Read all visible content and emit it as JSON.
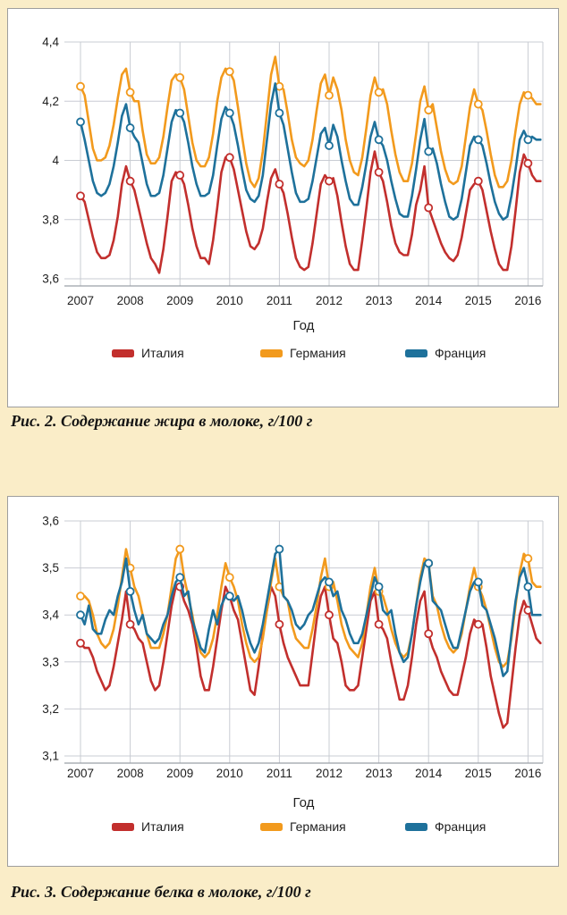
{
  "page": {
    "background": "#faedc8",
    "panel_background": "#ffffff",
    "panel_border": "#9e9e9e",
    "grid_color": "#c9ccd3",
    "axis_color": "#9aa0a6",
    "text_color": "#1f1f1f"
  },
  "figures": [
    {
      "caption": "Рис. 2. Содержание жира в молоке, г/100 г"
    },
    {
      "caption": "Рис. 3. Содержание белка в молоке, г/100 г"
    }
  ],
  "chart_data": [
    {
      "type": "line",
      "title": "Содержание жира в молоке, г/100 г",
      "xlabel": "Год",
      "ylabel": "",
      "x_start_year": 2007,
      "points_per_year": 12,
      "n_points": 112,
      "x_tick_labels": [
        "2007",
        "2008",
        "2009",
        "2010",
        "2011",
        "2012",
        "2013",
        "2014",
        "2015",
        "2016"
      ],
      "ylim": [
        3.6,
        4.4
      ],
      "y_ticks": [
        4.4,
        4.2,
        4.0,
        3.8,
        3.6
      ],
      "y_tick_labels": [
        "4,4",
        "4,2",
        "4",
        "3,8",
        "3,6"
      ],
      "marker_every": 12,
      "grid": true,
      "legend_position": "bottom",
      "series": [
        {
          "id": "italy",
          "name": "Италия",
          "color": "#c22f2d",
          "values": [
            3.88,
            3.86,
            3.8,
            3.74,
            3.69,
            3.67,
            3.67,
            3.68,
            3.73,
            3.81,
            3.92,
            3.98,
            3.93,
            3.9,
            3.84,
            3.78,
            3.72,
            3.67,
            3.65,
            3.62,
            3.7,
            3.81,
            3.93,
            3.96,
            3.95,
            3.92,
            3.85,
            3.77,
            3.71,
            3.67,
            3.67,
            3.65,
            3.73,
            3.84,
            3.96,
            4.01,
            4.01,
            3.97,
            3.9,
            3.83,
            3.76,
            3.71,
            3.7,
            3.72,
            3.77,
            3.86,
            3.94,
            3.97,
            3.92,
            3.89,
            3.82,
            3.74,
            3.67,
            3.64,
            3.63,
            3.64,
            3.72,
            3.82,
            3.92,
            3.95,
            3.93,
            3.94,
            3.88,
            3.79,
            3.71,
            3.65,
            3.63,
            3.63,
            3.73,
            3.84,
            3.96,
            4.03,
            3.96,
            3.93,
            3.86,
            3.78,
            3.72,
            3.69,
            3.68,
            3.68,
            3.75,
            3.85,
            3.9,
            3.98,
            3.84,
            3.8,
            3.76,
            3.72,
            3.69,
            3.67,
            3.66,
            3.68,
            3.74,
            3.82,
            3.9,
            3.92,
            3.93,
            3.9,
            3.83,
            3.76,
            3.7,
            3.65,
            3.63,
            3.63,
            3.71,
            3.83,
            3.96,
            4.02,
            3.99,
            3.95,
            3.93,
            3.93
          ]
        },
        {
          "id": "germany",
          "name": "Германия",
          "color": "#f29a1d",
          "values": [
            4.25,
            4.22,
            4.13,
            4.04,
            4.0,
            4.0,
            4.01,
            4.05,
            4.12,
            4.21,
            4.29,
            4.31,
            4.23,
            4.2,
            4.2,
            4.1,
            4.02,
            3.99,
            3.99,
            4.01,
            4.08,
            4.18,
            4.27,
            4.29,
            4.28,
            4.24,
            4.15,
            4.06,
            4.0,
            3.98,
            3.98,
            4.01,
            4.09,
            4.2,
            4.28,
            4.31,
            4.3,
            4.27,
            4.18,
            4.08,
            3.99,
            3.93,
            3.91,
            3.94,
            4.03,
            4.16,
            4.29,
            4.35,
            4.25,
            4.24,
            4.16,
            4.07,
            4.01,
            3.99,
            3.98,
            4.0,
            4.07,
            4.17,
            4.26,
            4.29,
            4.22,
            4.28,
            4.24,
            4.17,
            4.07,
            4.0,
            3.96,
            3.95,
            4.01,
            4.11,
            4.22,
            4.28,
            4.23,
            4.24,
            4.19,
            4.1,
            4.02,
            3.96,
            3.93,
            3.93,
            3.99,
            4.09,
            4.2,
            4.25,
            4.17,
            4.19,
            4.11,
            4.03,
            3.97,
            3.93,
            3.92,
            3.93,
            3.98,
            4.08,
            4.18,
            4.24,
            4.19,
            4.17,
            4.1,
            4.02,
            3.95,
            3.91,
            3.91,
            3.93,
            4.0,
            4.1,
            4.19,
            4.23,
            4.22,
            4.21,
            4.19,
            4.19
          ]
        },
        {
          "id": "france",
          "name": "Франция",
          "color": "#1e719b",
          "values": [
            4.13,
            4.07,
            4.0,
            3.93,
            3.89,
            3.88,
            3.89,
            3.92,
            3.98,
            4.06,
            4.15,
            4.19,
            4.11,
            4.08,
            4.06,
            3.99,
            3.92,
            3.88,
            3.88,
            3.89,
            3.95,
            4.04,
            4.13,
            4.17,
            4.16,
            4.13,
            4.06,
            3.98,
            3.92,
            3.88,
            3.88,
            3.89,
            3.95,
            4.05,
            4.14,
            4.18,
            4.16,
            4.12,
            4.05,
            3.97,
            3.9,
            3.87,
            3.86,
            3.88,
            3.95,
            4.07,
            4.19,
            4.26,
            4.16,
            4.12,
            4.04,
            3.96,
            3.89,
            3.86,
            3.86,
            3.87,
            3.93,
            4.01,
            4.09,
            4.11,
            4.05,
            4.12,
            4.08,
            4.0,
            3.93,
            3.87,
            3.85,
            3.85,
            3.91,
            3.99,
            4.08,
            4.13,
            4.07,
            4.05,
            4.0,
            3.93,
            3.87,
            3.82,
            3.81,
            3.81,
            3.88,
            3.97,
            4.07,
            4.14,
            4.03,
            4.04,
            3.99,
            3.92,
            3.86,
            3.81,
            3.8,
            3.81,
            3.87,
            3.96,
            4.05,
            4.08,
            4.07,
            4.05,
            3.99,
            3.92,
            3.86,
            3.82,
            3.8,
            3.81,
            3.88,
            3.97,
            4.07,
            4.1,
            4.07,
            4.08,
            4.07,
            4.07
          ]
        }
      ]
    },
    {
      "type": "line",
      "title": "Содержание белка в молоке, г/100 г",
      "xlabel": "Год",
      "ylabel": "",
      "x_start_year": 2007,
      "points_per_year": 12,
      "n_points": 112,
      "x_tick_labels": [
        "2007",
        "2008",
        "2009",
        "2010",
        "2011",
        "2012",
        "2013",
        "2014",
        "2015",
        "2016"
      ],
      "ylim": [
        3.1,
        3.6
      ],
      "y_ticks": [
        3.6,
        3.5,
        3.4,
        3.3,
        3.2,
        3.1
      ],
      "y_tick_labels": [
        "3,6",
        "3,5",
        "3,4",
        "3,3",
        "3,2",
        "3,1"
      ],
      "marker_every": 12,
      "grid": true,
      "legend_position": "bottom",
      "series": [
        {
          "id": "italy",
          "name": "Италия",
          "color": "#c22f2d",
          "values": [
            3.34,
            3.33,
            3.33,
            3.31,
            3.28,
            3.26,
            3.24,
            3.25,
            3.29,
            3.34,
            3.39,
            3.45,
            3.38,
            3.37,
            3.35,
            3.34,
            3.3,
            3.26,
            3.24,
            3.25,
            3.3,
            3.36,
            3.42,
            3.46,
            3.46,
            3.43,
            3.41,
            3.38,
            3.33,
            3.27,
            3.24,
            3.24,
            3.29,
            3.35,
            3.41,
            3.46,
            3.44,
            3.41,
            3.39,
            3.34,
            3.29,
            3.24,
            3.23,
            3.29,
            3.36,
            3.41,
            3.46,
            3.44,
            3.38,
            3.34,
            3.31,
            3.29,
            3.27,
            3.25,
            3.25,
            3.25,
            3.32,
            3.39,
            3.44,
            3.46,
            3.4,
            3.35,
            3.34,
            3.3,
            3.25,
            3.24,
            3.24,
            3.25,
            3.31,
            3.37,
            3.43,
            3.45,
            3.38,
            3.37,
            3.35,
            3.3,
            3.26,
            3.22,
            3.22,
            3.25,
            3.31,
            3.38,
            3.43,
            3.45,
            3.36,
            3.33,
            3.31,
            3.28,
            3.26,
            3.24,
            3.23,
            3.23,
            3.27,
            3.31,
            3.36,
            3.39,
            3.38,
            3.38,
            3.33,
            3.27,
            3.23,
            3.19,
            3.16,
            3.17,
            3.25,
            3.33,
            3.4,
            3.43,
            3.41,
            3.38,
            3.35,
            3.34
          ]
        },
        {
          "id": "germany",
          "name": "Германия",
          "color": "#f29a1d",
          "values": [
            3.44,
            3.44,
            3.43,
            3.4,
            3.36,
            3.34,
            3.33,
            3.34,
            3.37,
            3.42,
            3.48,
            3.54,
            3.5,
            3.46,
            3.44,
            3.4,
            3.36,
            3.33,
            3.33,
            3.33,
            3.36,
            3.4,
            3.46,
            3.52,
            3.54,
            3.48,
            3.44,
            3.4,
            3.35,
            3.32,
            3.31,
            3.32,
            3.35,
            3.4,
            3.46,
            3.51,
            3.48,
            3.46,
            3.43,
            3.38,
            3.34,
            3.31,
            3.3,
            3.31,
            3.35,
            3.41,
            3.47,
            3.52,
            3.46,
            3.44,
            3.43,
            3.38,
            3.35,
            3.34,
            3.33,
            3.33,
            3.37,
            3.42,
            3.48,
            3.52,
            3.46,
            3.47,
            3.43,
            3.38,
            3.35,
            3.33,
            3.32,
            3.31,
            3.34,
            3.4,
            3.46,
            3.5,
            3.45,
            3.44,
            3.41,
            3.37,
            3.34,
            3.32,
            3.31,
            3.32,
            3.36,
            3.42,
            3.48,
            3.52,
            3.51,
            3.44,
            3.42,
            3.38,
            3.35,
            3.33,
            3.32,
            3.33,
            3.36,
            3.41,
            3.46,
            3.5,
            3.46,
            3.44,
            3.41,
            3.37,
            3.33,
            3.3,
            3.29,
            3.3,
            3.35,
            3.42,
            3.49,
            3.53,
            3.52,
            3.47,
            3.46,
            3.46
          ]
        },
        {
          "id": "france",
          "name": "Франция",
          "color": "#1e719b",
          "values": [
            3.4,
            3.38,
            3.42,
            3.37,
            3.36,
            3.36,
            3.39,
            3.41,
            3.4,
            3.44,
            3.47,
            3.52,
            3.45,
            3.41,
            3.38,
            3.4,
            3.36,
            3.35,
            3.34,
            3.35,
            3.38,
            3.4,
            3.44,
            3.47,
            3.48,
            3.44,
            3.45,
            3.39,
            3.36,
            3.33,
            3.32,
            3.37,
            3.41,
            3.38,
            3.42,
            3.44,
            3.44,
            3.43,
            3.44,
            3.41,
            3.37,
            3.34,
            3.32,
            3.34,
            3.38,
            3.43,
            3.48,
            3.53,
            3.54,
            3.44,
            3.43,
            3.41,
            3.38,
            3.37,
            3.38,
            3.4,
            3.41,
            3.44,
            3.47,
            3.48,
            3.47,
            3.44,
            3.45,
            3.41,
            3.39,
            3.36,
            3.34,
            3.34,
            3.36,
            3.4,
            3.44,
            3.48,
            3.46,
            3.41,
            3.4,
            3.41,
            3.36,
            3.32,
            3.3,
            3.31,
            3.36,
            3.42,
            3.47,
            3.51,
            3.51,
            3.43,
            3.42,
            3.41,
            3.38,
            3.35,
            3.33,
            3.33,
            3.37,
            3.41,
            3.45,
            3.47,
            3.47,
            3.42,
            3.41,
            3.38,
            3.35,
            3.31,
            3.27,
            3.28,
            3.36,
            3.43,
            3.48,
            3.5,
            3.46,
            3.4,
            3.4,
            3.4
          ]
        }
      ]
    }
  ]
}
